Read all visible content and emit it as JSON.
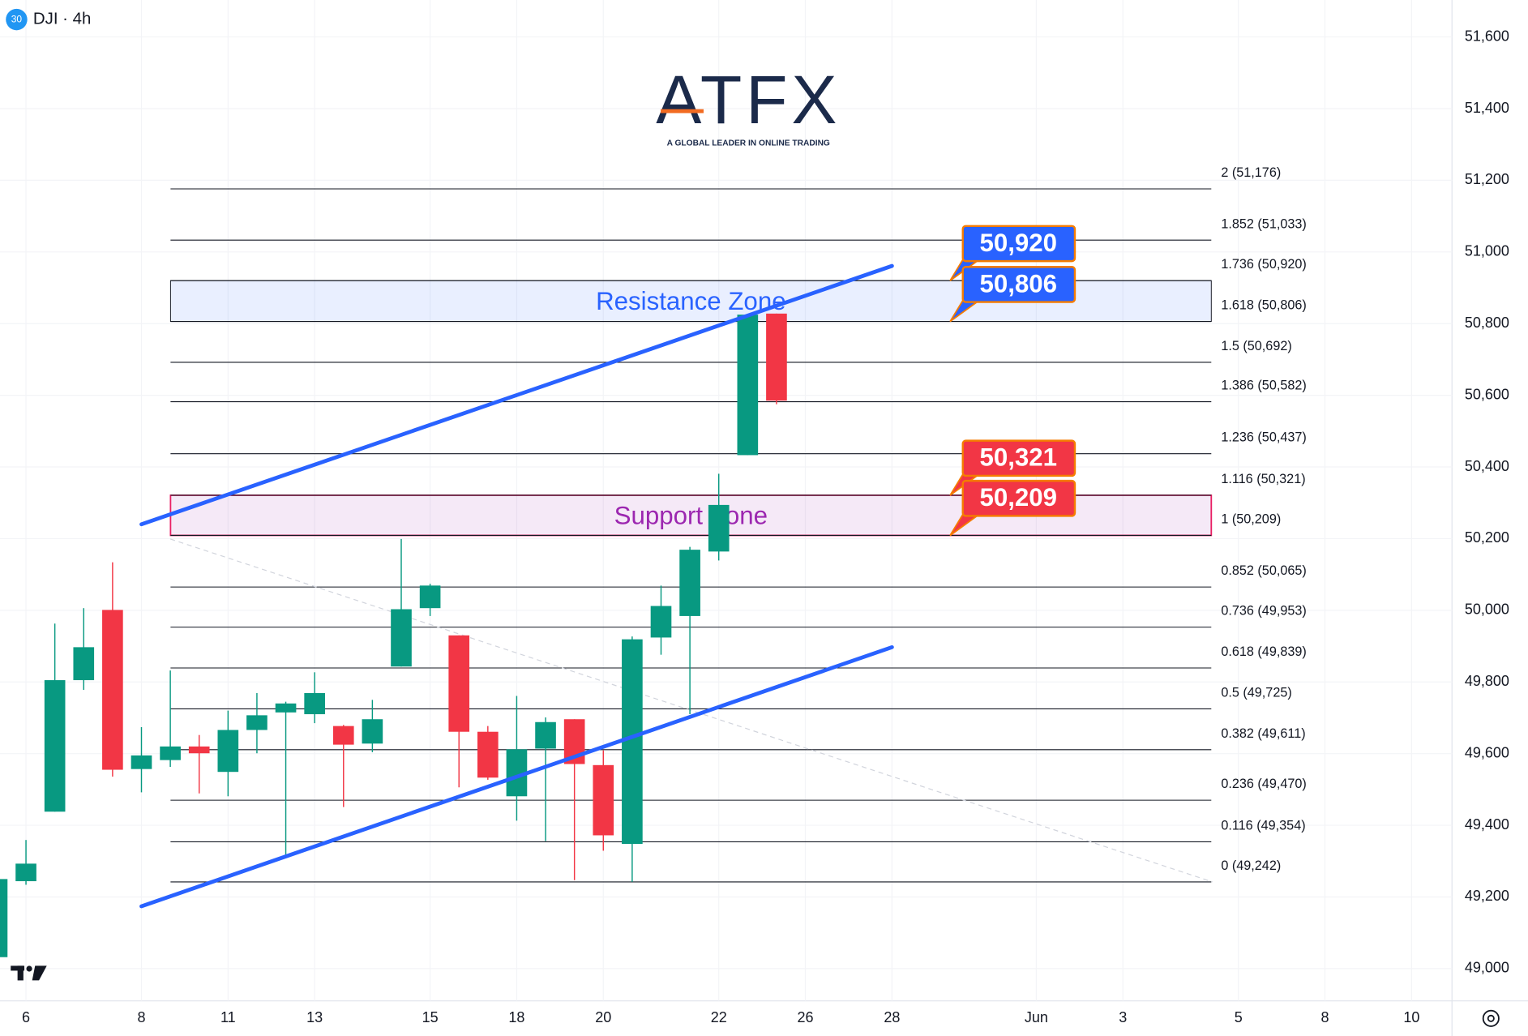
{
  "chart_data": {
    "type": "candlestick",
    "badge": "30",
    "title": "DJI · 4h",
    "logo": "ATFX",
    "logo_tagline": "A GLOBAL LEADER IN ONLINE TRADING",
    "up_color": "#089981",
    "down_color": "#f23645",
    "open": [
      49032,
      49244,
      49438,
      49805,
      50001,
      49557,
      49582,
      49620,
      49549,
      49666,
      49715,
      49710,
      49677,
      49628,
      49843,
      50006,
      49930,
      49661,
      49481,
      49614,
      49696,
      49568,
      49348,
      49924,
      49984,
      50164,
      50433,
      50828
    ],
    "high": [
      49250,
      49359,
      49963,
      50006,
      50134,
      49674,
      49832,
      49652,
      49720,
      49769,
      49745,
      49827,
      49680,
      49750,
      50199,
      50074,
      49930,
      49677,
      49761,
      49701,
      49696,
      49609,
      49927,
      50069,
      50177,
      50381,
      50825,
      50828
    ],
    "low": [
      49032,
      49234,
      49438,
      49778,
      49536,
      49492,
      49563,
      49489,
      49481,
      49601,
      49310,
      49685,
      49451,
      49604,
      49843,
      49984,
      49506,
      49527,
      49413,
      49356,
      49247,
      49329,
      49242,
      49876,
      49710,
      50139,
      50433,
      50575
    ],
    "close": [
      49250,
      49293,
      49805,
      49897,
      49555,
      49595,
      49620,
      49601,
      49666,
      49707,
      49740,
      49769,
      49625,
      49696,
      50003,
      50069,
      49661,
      49533,
      49612,
      49688,
      49571,
      49372,
      49919,
      50012,
      50169,
      50294,
      50825,
      50585
    ],
    "xlim": [
      0.1,
      50.4
    ],
    "xticks": [
      {
        "value": 1,
        "label": "6"
      },
      {
        "value": 5,
        "label": "8"
      },
      {
        "value": 8,
        "label": "11"
      },
      {
        "value": 11,
        "label": "13"
      },
      {
        "value": 15,
        "label": "15"
      },
      {
        "value": 18,
        "label": "18"
      },
      {
        "value": 21,
        "label": "20"
      },
      {
        "value": 25,
        "label": "22"
      },
      {
        "value": 28,
        "label": "26"
      },
      {
        "value": 31,
        "label": "28"
      },
      {
        "value": 36,
        "label": "Jun"
      },
      {
        "value": 39,
        "label": "3"
      },
      {
        "value": 43,
        "label": "5"
      },
      {
        "value": 46,
        "label": "8"
      },
      {
        "value": 49,
        "label": "10"
      }
    ],
    "ylim": [
      48910,
      51703
    ],
    "yticks": [
      {
        "value": 49000,
        "label": "49,000"
      },
      {
        "value": 49200,
        "label": "49,200"
      },
      {
        "value": 49400,
        "label": "49,400"
      },
      {
        "value": 49600,
        "label": "49,600"
      },
      {
        "value": 49800,
        "label": "49,800"
      },
      {
        "value": 50000,
        "label": "50,000"
      },
      {
        "value": 50200,
        "label": "50,200"
      },
      {
        "value": 50400,
        "label": "50,400"
      },
      {
        "value": 50600,
        "label": "50,600"
      },
      {
        "value": 50800,
        "label": "50,800"
      },
      {
        "value": 51000,
        "label": "51,000"
      },
      {
        "value": 51200,
        "label": "51,200"
      },
      {
        "value": 51400,
        "label": "51,400"
      },
      {
        "value": 51600,
        "label": "51,600"
      }
    ],
    "levels": [
      {
        "label": "2 (51,176)",
        "value": 51176
      },
      {
        "label": "1.852 (51,033)",
        "value": 51033
      },
      {
        "label": "1.736 (50,920)",
        "value": 50920
      },
      {
        "label": "1.618 (50,806)",
        "value": 50806
      },
      {
        "label": "1.5 (50,692)",
        "value": 50692
      },
      {
        "label": "1.386 (50,582)",
        "value": 50582
      },
      {
        "label": "1.236 (50,437)",
        "value": 50437
      },
      {
        "label": "1.116 (50,321)",
        "value": 50321
      },
      {
        "label": "1 (50,209)",
        "value": 50209
      },
      {
        "label": "0.852 (50,065)",
        "value": 50065
      },
      {
        "label": "0.736 (49,953)",
        "value": 49953
      },
      {
        "label": "0.618 (49,839)",
        "value": 49839
      },
      {
        "label": "0.5 (49,725)",
        "value": 49725
      },
      {
        "label": "0.382 (49,611)",
        "value": 49611
      },
      {
        "label": "0.236 (49,470)",
        "value": 49470
      },
      {
        "label": "0.116 (49,354)",
        "value": 49354
      },
      {
        "label": "0 (49,242)",
        "value": 49242
      }
    ],
    "zones": [
      {
        "name": "Resistance Zone",
        "high": 50920,
        "low": 50806,
        "color": "#2962ff"
      },
      {
        "name": "Support Zone",
        "high": 50321,
        "low": 50209,
        "color": "#9c27b0"
      }
    ],
    "price_labels": [
      {
        "value": 50920,
        "label": "50,920",
        "color": "#2962ff"
      },
      {
        "value": 50806,
        "label": "50,806",
        "color": "#2962ff"
      },
      {
        "value": 50321,
        "label": "50,321",
        "color": "#f23645"
      },
      {
        "value": 50209,
        "label": "50,209",
        "color": "#f23645"
      }
    ],
    "trend_lines": [
      {
        "x": [
          5,
          31
        ],
        "y": [
          50240,
          50961
        ],
        "color": "#2962ff"
      },
      {
        "x": [
          5,
          31
        ],
        "y": [
          49174,
          49897
        ],
        "color": "#2962ff"
      }
    ],
    "dashed_lines": [
      {
        "x": [
          6,
          42.1
        ],
        "y": [
          50199,
          49242
        ],
        "color": "#d1d4dc"
      }
    ]
  }
}
